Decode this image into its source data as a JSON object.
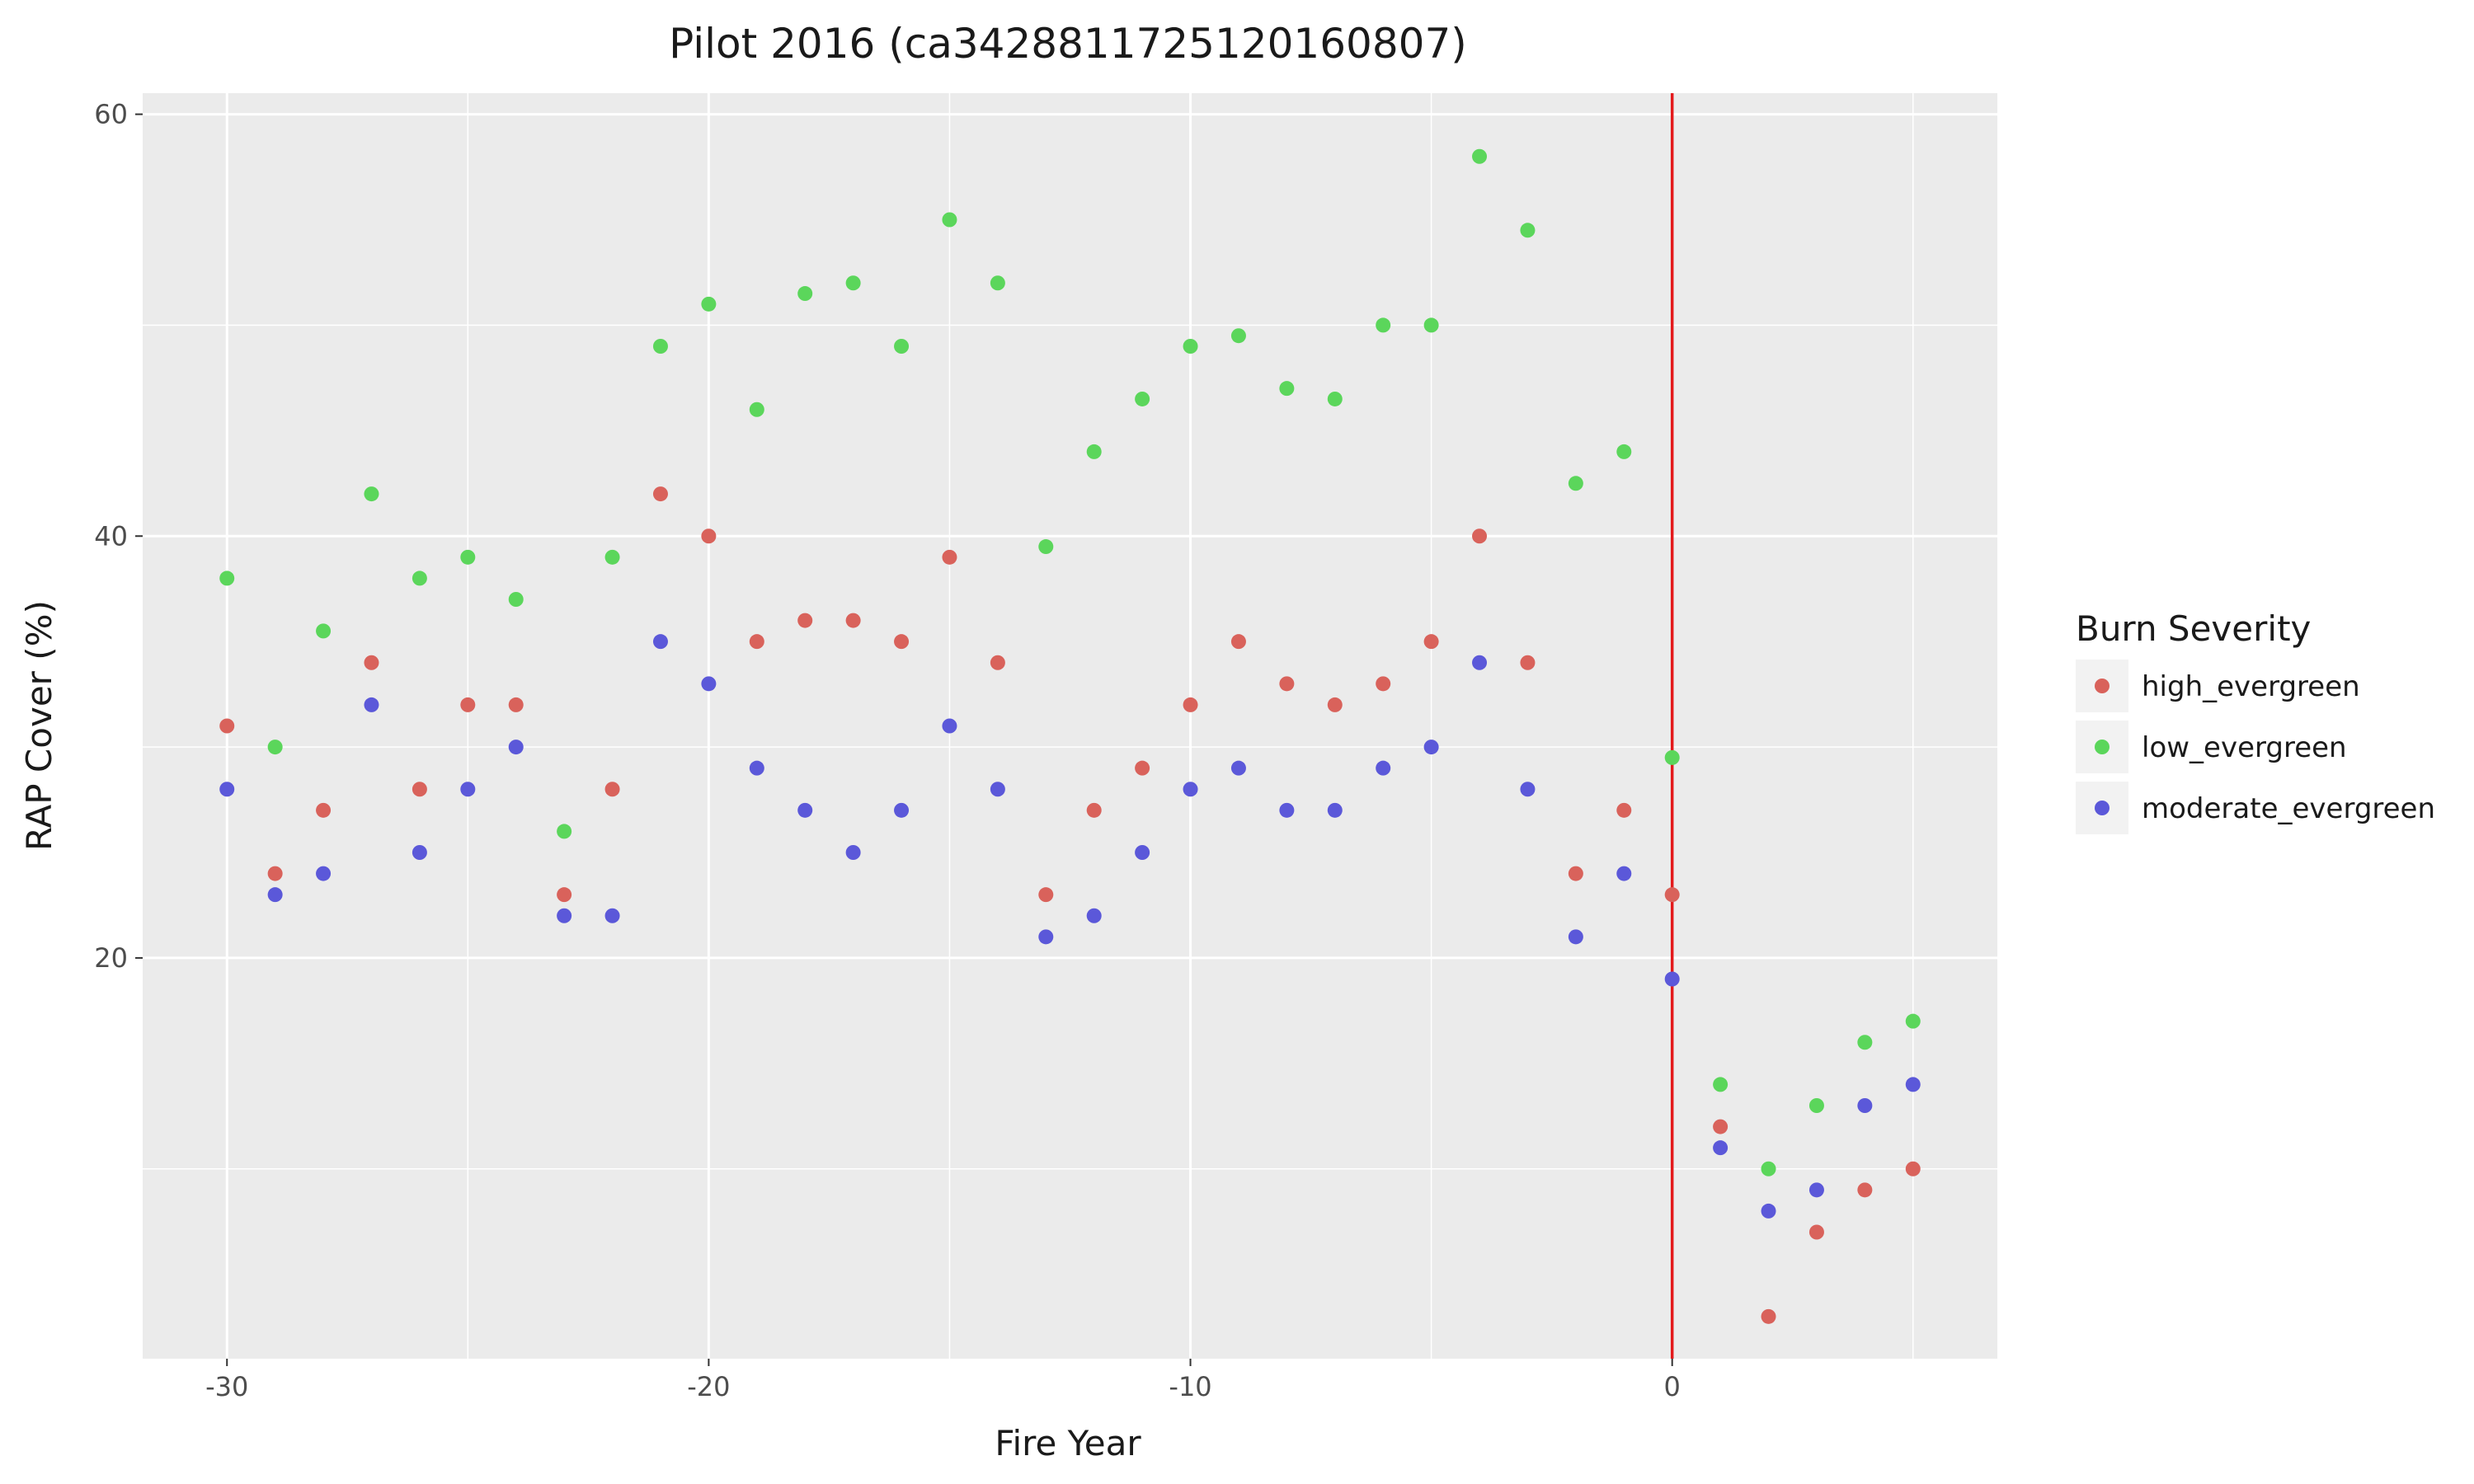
{
  "chart_data": {
    "type": "scatter",
    "title": "Pilot 2016 (ca3428811725120160807)",
    "xlabel": "Fire Year",
    "ylabel": "RAP Cover (%)",
    "xlim": [
      -31.75,
      6.75
    ],
    "ylim": [
      1.0,
      61.0
    ],
    "x_ticks": [
      -30,
      -20,
      -10,
      0
    ],
    "x_tick_labels": [
      "-30",
      "-20",
      "-10",
      "0"
    ],
    "y_ticks": [
      20,
      40,
      60
    ],
    "y_tick_labels": [
      "20",
      "40",
      "60"
    ],
    "grid": true,
    "legend_title": "Burn Severity",
    "legend_position": "right",
    "reference_line": {
      "x": 0,
      "color": "#e31a1c"
    },
    "series": [
      {
        "name": "high_evergreen",
        "color": "#d9625b",
        "points": [
          [
            -30,
            31
          ],
          [
            -29,
            24
          ],
          [
            -28,
            27
          ],
          [
            -27,
            34
          ],
          [
            -26,
            28
          ],
          [
            -25,
            32
          ],
          [
            -24,
            32
          ],
          [
            -23,
            23
          ],
          [
            -22,
            28
          ],
          [
            -21,
            42
          ],
          [
            -20,
            40
          ],
          [
            -19,
            35
          ],
          [
            -18,
            36
          ],
          [
            -17,
            36
          ],
          [
            -16,
            35
          ],
          [
            -15,
            39
          ],
          [
            -14,
            34
          ],
          [
            -13,
            23
          ],
          [
            -12,
            27
          ],
          [
            -11,
            29
          ],
          [
            -10,
            32
          ],
          [
            -9,
            35
          ],
          [
            -8,
            33
          ],
          [
            -7,
            32
          ],
          [
            -6,
            33
          ],
          [
            -5,
            35
          ],
          [
            -4,
            40
          ],
          [
            -3,
            34
          ],
          [
            -2,
            24
          ],
          [
            -1,
            27
          ],
          [
            0,
            23
          ],
          [
            1,
            12
          ],
          [
            2,
            3
          ],
          [
            3,
            7
          ],
          [
            4,
            9
          ],
          [
            5,
            10
          ]
        ]
      },
      {
        "name": "low_evergreen",
        "color": "#5bd65b",
        "points": [
          [
            -30,
            38
          ],
          [
            -29,
            30
          ],
          [
            -28,
            35.5
          ],
          [
            -27,
            42
          ],
          [
            -26,
            38
          ],
          [
            -25,
            39
          ],
          [
            -24,
            37
          ],
          [
            -23,
            26
          ],
          [
            -22,
            39
          ],
          [
            -21,
            49
          ],
          [
            -20,
            51
          ],
          [
            -19,
            46
          ],
          [
            -18,
            51.5
          ],
          [
            -17,
            52
          ],
          [
            -16,
            49
          ],
          [
            -15,
            55
          ],
          [
            -14,
            52
          ],
          [
            -13,
            39.5
          ],
          [
            -12,
            44
          ],
          [
            -11,
            46.5
          ],
          [
            -10,
            49
          ],
          [
            -9,
            49.5
          ],
          [
            -8,
            47
          ],
          [
            -7,
            46.5
          ],
          [
            -6,
            50
          ],
          [
            -5,
            50
          ],
          [
            -4,
            58
          ],
          [
            -3,
            54.5
          ],
          [
            -2,
            42.5
          ],
          [
            -1,
            44
          ],
          [
            0,
            29.5
          ],
          [
            1,
            14
          ],
          [
            2,
            10
          ],
          [
            3,
            13
          ],
          [
            4,
            16
          ],
          [
            5,
            17
          ]
        ]
      },
      {
        "name": "moderate_evergreen",
        "color": "#5b58d9",
        "points": [
          [
            -30,
            28
          ],
          [
            -29,
            23
          ],
          [
            -28,
            24
          ],
          [
            -27,
            32
          ],
          [
            -26,
            25
          ],
          [
            -25,
            28
          ],
          [
            -24,
            30
          ],
          [
            -23,
            22
          ],
          [
            -22,
            22
          ],
          [
            -21,
            35
          ],
          [
            -20,
            33
          ],
          [
            -19,
            29
          ],
          [
            -18,
            27
          ],
          [
            -17,
            25
          ],
          [
            -16,
            27
          ],
          [
            -15,
            31
          ],
          [
            -14,
            28
          ],
          [
            -13,
            21
          ],
          [
            -12,
            22
          ],
          [
            -11,
            25
          ],
          [
            -10,
            28
          ],
          [
            -9,
            29
          ],
          [
            -8,
            27
          ],
          [
            -7,
            27
          ],
          [
            -6,
            29
          ],
          [
            -5,
            30
          ],
          [
            -4,
            34
          ],
          [
            -3,
            28
          ],
          [
            -2,
            21
          ],
          [
            -1,
            24
          ],
          [
            0,
            19
          ],
          [
            1,
            11
          ],
          [
            2,
            8
          ],
          [
            3,
            9
          ],
          [
            4,
            13
          ],
          [
            5,
            14
          ]
        ]
      }
    ]
  }
}
